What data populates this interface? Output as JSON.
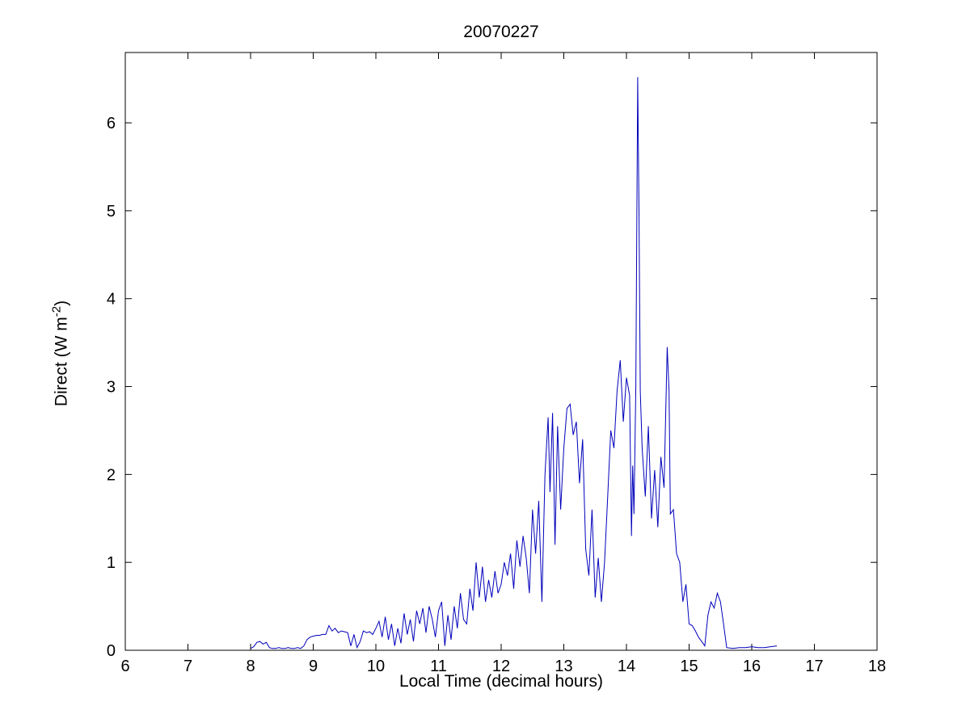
{
  "figure": {
    "background_color": "#ffffff",
    "axes_color": "#000000"
  },
  "chart_data": {
    "type": "line",
    "title": "20070227",
    "xlabel": "Local Time (decimal hours)",
    "ylabel": "Direct (W m⁻²)",
    "ylabel_parts": {
      "prefix": "Direct (W m",
      "sup": "-2",
      "suffix": ")"
    },
    "xlim": [
      6,
      18
    ],
    "ylim": [
      0,
      6.8
    ],
    "xticks": [
      6,
      7,
      8,
      9,
      10,
      11,
      12,
      13,
      14,
      15,
      16,
      17,
      18
    ],
    "yticks": [
      0,
      1,
      2,
      3,
      4,
      5,
      6
    ],
    "grid": false,
    "legend": null,
    "line_color": "#0000bb",
    "series": [
      {
        "name": "Direct",
        "points": [
          [
            8.0,
            0.02
          ],
          [
            8.05,
            0.04
          ],
          [
            8.1,
            0.09
          ],
          [
            8.15,
            0.1
          ],
          [
            8.2,
            0.07
          ],
          [
            8.25,
            0.09
          ],
          [
            8.3,
            0.03
          ],
          [
            8.35,
            0.02
          ],
          [
            8.4,
            0.02
          ],
          [
            8.45,
            0.03
          ],
          [
            8.5,
            0.02
          ],
          [
            8.55,
            0.02
          ],
          [
            8.6,
            0.03
          ],
          [
            8.65,
            0.02
          ],
          [
            8.7,
            0.02
          ],
          [
            8.75,
            0.03
          ],
          [
            8.8,
            0.02
          ],
          [
            8.85,
            0.05
          ],
          [
            8.9,
            0.12
          ],
          [
            8.95,
            0.15
          ],
          [
            9.0,
            0.16
          ],
          [
            9.05,
            0.17
          ],
          [
            9.1,
            0.17
          ],
          [
            9.15,
            0.18
          ],
          [
            9.2,
            0.18
          ],
          [
            9.25,
            0.28
          ],
          [
            9.3,
            0.22
          ],
          [
            9.35,
            0.25
          ],
          [
            9.4,
            0.2
          ],
          [
            9.45,
            0.22
          ],
          [
            9.5,
            0.21
          ],
          [
            9.55,
            0.2
          ],
          [
            9.6,
            0.05
          ],
          [
            9.65,
            0.18
          ],
          [
            9.7,
            0.03
          ],
          [
            9.75,
            0.1
          ],
          [
            9.8,
            0.22
          ],
          [
            9.85,
            0.2
          ],
          [
            9.9,
            0.21
          ],
          [
            9.95,
            0.18
          ],
          [
            10.0,
            0.25
          ],
          [
            10.05,
            0.33
          ],
          [
            10.1,
            0.15
          ],
          [
            10.15,
            0.38
          ],
          [
            10.2,
            0.12
          ],
          [
            10.25,
            0.3
          ],
          [
            10.3,
            0.05
          ],
          [
            10.35,
            0.25
          ],
          [
            10.4,
            0.08
          ],
          [
            10.45,
            0.42
          ],
          [
            10.5,
            0.18
          ],
          [
            10.55,
            0.35
          ],
          [
            10.6,
            0.1
          ],
          [
            10.65,
            0.45
          ],
          [
            10.7,
            0.3
          ],
          [
            10.75,
            0.48
          ],
          [
            10.8,
            0.2
          ],
          [
            10.85,
            0.5
          ],
          [
            10.9,
            0.35
          ],
          [
            10.95,
            0.15
          ],
          [
            11.0,
            0.45
          ],
          [
            11.05,
            0.55
          ],
          [
            11.1,
            0.05
          ],
          [
            11.15,
            0.4
          ],
          [
            11.2,
            0.12
          ],
          [
            11.25,
            0.5
          ],
          [
            11.3,
            0.25
          ],
          [
            11.35,
            0.65
          ],
          [
            11.4,
            0.35
          ],
          [
            11.45,
            0.3
          ],
          [
            11.5,
            0.7
          ],
          [
            11.55,
            0.45
          ],
          [
            11.6,
            1.0
          ],
          [
            11.65,
            0.6
          ],
          [
            11.7,
            0.95
          ],
          [
            11.75,
            0.55
          ],
          [
            11.8,
            0.8
          ],
          [
            11.85,
            0.6
          ],
          [
            11.9,
            0.9
          ],
          [
            11.95,
            0.65
          ],
          [
            12.0,
            0.75
          ],
          [
            12.05,
            1.0
          ],
          [
            12.1,
            0.85
          ],
          [
            12.15,
            1.1
          ],
          [
            12.2,
            0.7
          ],
          [
            12.25,
            1.25
          ],
          [
            12.3,
            0.95
          ],
          [
            12.35,
            1.3
          ],
          [
            12.4,
            1.05
          ],
          [
            12.45,
            0.65
          ],
          [
            12.5,
            1.6
          ],
          [
            12.55,
            1.1
          ],
          [
            12.6,
            1.7
          ],
          [
            12.65,
            0.55
          ],
          [
            12.7,
            2.0
          ],
          [
            12.75,
            2.65
          ],
          [
            12.78,
            1.8
          ],
          [
            12.82,
            2.7
          ],
          [
            12.86,
            1.2
          ],
          [
            12.9,
            2.55
          ],
          [
            12.95,
            1.6
          ],
          [
            13.0,
            2.3
          ],
          [
            13.05,
            2.75
          ],
          [
            13.1,
            2.8
          ],
          [
            13.15,
            2.45
          ],
          [
            13.2,
            2.6
          ],
          [
            13.25,
            1.9
          ],
          [
            13.3,
            2.4
          ],
          [
            13.35,
            1.15
          ],
          [
            13.4,
            0.85
          ],
          [
            13.45,
            1.6
          ],
          [
            13.5,
            0.6
          ],
          [
            13.55,
            1.05
          ],
          [
            13.6,
            0.55
          ],
          [
            13.65,
            1.0
          ],
          [
            13.7,
            1.75
          ],
          [
            13.75,
            2.5
          ],
          [
            13.8,
            2.3
          ],
          [
            13.85,
            2.95
          ],
          [
            13.9,
            3.3
          ],
          [
            13.95,
            2.6
          ],
          [
            14.0,
            3.1
          ],
          [
            14.05,
            2.9
          ],
          [
            14.08,
            1.3
          ],
          [
            14.1,
            2.1
          ],
          [
            14.12,
            1.55
          ],
          [
            14.15,
            3.0
          ],
          [
            14.18,
            6.52
          ],
          [
            14.2,
            5.0
          ],
          [
            14.22,
            2.95
          ],
          [
            14.25,
            2.3
          ],
          [
            14.3,
            1.75
          ],
          [
            14.35,
            2.55
          ],
          [
            14.4,
            1.5
          ],
          [
            14.45,
            2.05
          ],
          [
            14.5,
            1.4
          ],
          [
            14.55,
            2.2
          ],
          [
            14.6,
            1.85
          ],
          [
            14.65,
            3.45
          ],
          [
            14.68,
            2.95
          ],
          [
            14.7,
            1.55
          ],
          [
            14.75,
            1.6
          ],
          [
            14.8,
            1.1
          ],
          [
            14.85,
            1.0
          ],
          [
            14.9,
            0.55
          ],
          [
            14.95,
            0.75
          ],
          [
            15.0,
            0.3
          ],
          [
            15.05,
            0.28
          ],
          [
            15.1,
            0.22
          ],
          [
            15.15,
            0.15
          ],
          [
            15.2,
            0.1
          ],
          [
            15.25,
            0.05
          ],
          [
            15.3,
            0.4
          ],
          [
            15.35,
            0.55
          ],
          [
            15.4,
            0.48
          ],
          [
            15.45,
            0.65
          ],
          [
            15.5,
            0.55
          ],
          [
            15.55,
            0.3
          ],
          [
            15.6,
            0.03
          ],
          [
            15.7,
            0.02
          ],
          [
            15.8,
            0.03
          ],
          [
            15.9,
            0.03
          ],
          [
            16.0,
            0.04
          ],
          [
            16.1,
            0.03
          ],
          [
            16.2,
            0.03
          ],
          [
            16.3,
            0.04
          ],
          [
            16.4,
            0.05
          ]
        ]
      }
    ]
  }
}
